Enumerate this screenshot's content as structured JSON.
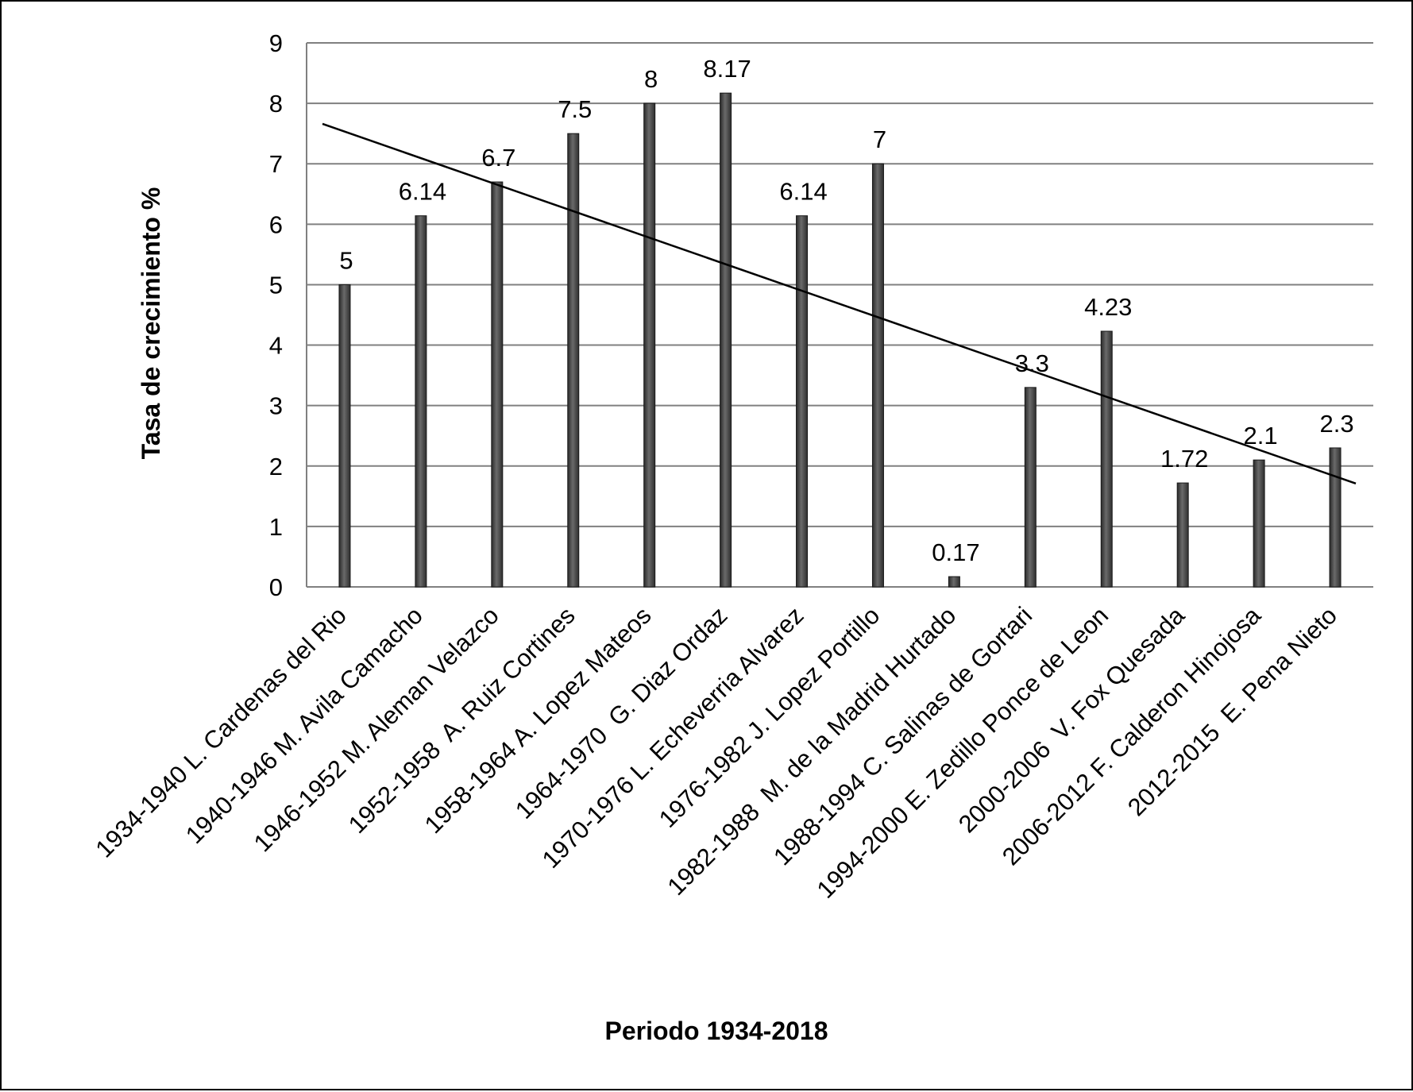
{
  "chart_data": {
    "type": "bar",
    "title": "",
    "xlabel": "Periodo 1934-2018",
    "ylabel": "Tasa de crecimiento %",
    "ylim": [
      0,
      9
    ],
    "yticks": [
      "0",
      "1",
      "2",
      "3",
      "4",
      "5",
      "6",
      "7",
      "8",
      "9"
    ],
    "grid": true,
    "legend": "none",
    "categories": [
      "1934-1940 L. Cardenas del Rio",
      "1940-1946 M. Avila Camacho",
      "1946-1952 M. Aleman Velazco",
      "1952-1958  A. Ruiz Cortines",
      "1958-1964 A. Lopez Mateos",
      "1964-1970  G. Diaz Ordaz",
      "1970-1976 L. Echeverria Alvarez",
      "1976-1982 J. Lopez Portillo",
      "1982-1988  M. de la Madrid Hurtado",
      "1988-1994 C. Salinas de Gortari",
      "1994-2000 E. Zedillo Ponce de Leon",
      "2000-2006  V. Fox Quesada",
      "2006-2012 F. Calderon Hinojosa",
      "2012-2015  E. Pena Nieto"
    ],
    "values": [
      5,
      6.14,
      6.7,
      7.5,
      8,
      8.17,
      6.14,
      7,
      0.17,
      3.3,
      4.23,
      1.72,
      2.1,
      2.3
    ],
    "data_labels": [
      "5",
      "6.14",
      "6.7",
      "7.5",
      "8",
      "8.17",
      "6.14",
      "7",
      "0.17",
      "3.3",
      "4.23",
      "1.72",
      "2.1",
      "2.3"
    ],
    "trendline": {
      "type": "linear",
      "start": 7.66,
      "end": 1.71
    },
    "colors": {
      "bar": "#4a4a4a",
      "grid": "#808080",
      "trendline": "#000000"
    }
  }
}
